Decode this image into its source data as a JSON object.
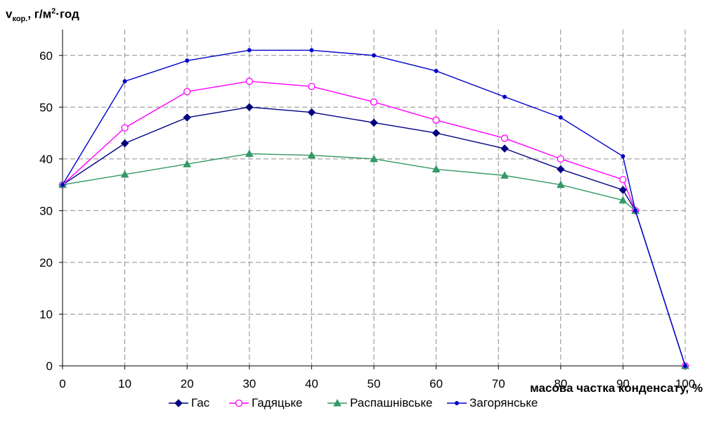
{
  "chart_data": {
    "type": "line",
    "ylabel": {
      "main": "v",
      "sub": "кор.",
      "unit_pre": ",  г/м",
      "unit_sup": "2",
      "unit_post": "·год"
    },
    "xlabel": "масова частка конденсату, %",
    "xlim": [
      0,
      100
    ],
    "ylim": [
      0,
      65
    ],
    "xticks": [
      0,
      10,
      20,
      30,
      40,
      50,
      60,
      70,
      80,
      90,
      100
    ],
    "yticks": [
      0,
      10,
      20,
      30,
      40,
      50,
      60
    ],
    "grid": true,
    "legend_position": "bottom",
    "series": [
      {
        "name": "Гас",
        "color": "#000080",
        "marker": "diamond",
        "x": [
          0,
          10,
          20,
          30,
          40,
          50,
          60,
          71,
          80,
          90,
          92,
          100
        ],
        "y": [
          35,
          43,
          48,
          50,
          49,
          47,
          45,
          42,
          38,
          34,
          30,
          0
        ]
      },
      {
        "name": "Гадяцьке",
        "color": "#FF00FF",
        "marker": "circle-open",
        "x": [
          0,
          10,
          20,
          30,
          40,
          50,
          60,
          71,
          80,
          90,
          92,
          100
        ],
        "y": [
          35,
          46,
          53,
          55,
          54,
          51,
          47.5,
          44,
          40,
          36,
          30,
          0
        ]
      },
      {
        "name": "Распашнівське",
        "color": "#339966",
        "marker": "triangle",
        "x": [
          0,
          10,
          20,
          30,
          40,
          50,
          60,
          71,
          80,
          90,
          92,
          100
        ],
        "y": [
          35,
          37,
          39,
          41,
          40.7,
          40,
          38,
          36.8,
          35,
          32,
          30,
          0
        ]
      },
      {
        "name": "Загорянське",
        "color": "#0000CC",
        "marker": "dot",
        "x": [
          0,
          10,
          20,
          30,
          40,
          50,
          60,
          71,
          80,
          90,
          92,
          100
        ],
        "y": [
          35,
          55,
          59,
          61,
          61,
          60,
          57,
          52,
          48,
          40.5,
          30,
          0
        ]
      }
    ]
  }
}
